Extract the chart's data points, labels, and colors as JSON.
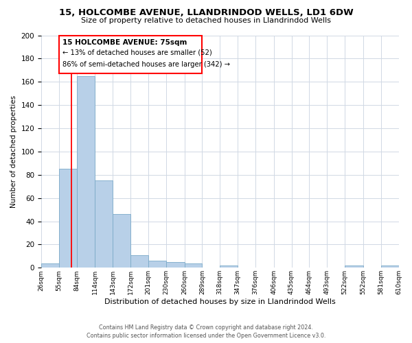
{
  "title1": "15, HOLCOMBE AVENUE, LLANDRINDOD WELLS, LD1 6DW",
  "title2": "Size of property relative to detached houses in Llandrindod Wells",
  "xlabel": "Distribution of detached houses by size in Llandrindod Wells",
  "ylabel": "Number of detached properties",
  "bin_edges": [
    26,
    55,
    84,
    114,
    143,
    172,
    201,
    230,
    260,
    289,
    318,
    347,
    376,
    406,
    435,
    464,
    493,
    522,
    552,
    581,
    610
  ],
  "bin_labels": [
    "26sqm",
    "55sqm",
    "84sqm",
    "114sqm",
    "143sqm",
    "172sqm",
    "201sqm",
    "230sqm",
    "260sqm",
    "289sqm",
    "318sqm",
    "347sqm",
    "376sqm",
    "406sqm",
    "435sqm",
    "464sqm",
    "493sqm",
    "522sqm",
    "552sqm",
    "581sqm",
    "610sqm"
  ],
  "bar_heights": [
    4,
    85,
    165,
    75,
    46,
    11,
    6,
    5,
    4,
    0,
    2,
    0,
    0,
    0,
    0,
    0,
    0,
    2,
    0,
    2,
    0
  ],
  "bar_color": "#b8d0e8",
  "property_line_x": 75,
  "property_line_color": "red",
  "annotation_text1": "15 HOLCOMBE AVENUE: 75sqm",
  "annotation_text2": "← 13% of detached houses are smaller (52)",
  "annotation_text3": "86% of semi-detached houses are larger (342) →",
  "ylim": [
    0,
    200
  ],
  "yticks": [
    0,
    20,
    40,
    60,
    80,
    100,
    120,
    140,
    160,
    180,
    200
  ],
  "footer1": "Contains HM Land Registry data © Crown copyright and database right 2024.",
  "footer2": "Contains public sector information licensed under the Open Government Licence v3.0.",
  "bg_color": "#ffffff",
  "grid_color": "#d0d8e4"
}
